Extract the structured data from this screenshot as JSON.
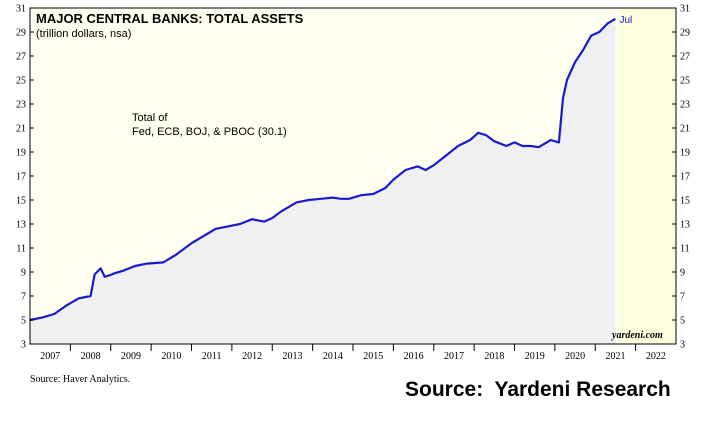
{
  "chart_data": {
    "type": "area",
    "title": "MAJOR CENTRAL BANKS: TOTAL ASSETS",
    "subtitle": "(trillion dollars, nsa)",
    "annotation_lines": [
      "Total of",
      "Fed, ECB, BOJ, & PBOC (30.1)"
    ],
    "end_label": "Jul",
    "watermark": "yardeni.com",
    "ylim": [
      3,
      31
    ],
    "yticks": [
      3,
      5,
      7,
      9,
      11,
      13,
      15,
      17,
      19,
      21,
      23,
      25,
      27,
      29,
      31
    ],
    "xlim": [
      2007,
      2023
    ],
    "xlabels": [
      "2007",
      "2008",
      "2009",
      "2010",
      "2011",
      "2012",
      "2013",
      "2014",
      "2015",
      "2016",
      "2017",
      "2018",
      "2019",
      "2020",
      "2021",
      "2022"
    ],
    "shaded_from": 2021.6,
    "grid": false,
    "colors": {
      "line": "#1a1acc",
      "fill": "#f0f0f2",
      "shade": "#ffffdd"
    },
    "series": [
      {
        "x": [
          2007.0,
          2007.3,
          2007.6,
          2007.9,
          2008.2,
          2008.5,
          2008.6,
          2008.75,
          2008.85,
          2008.95,
          2009.1,
          2009.3,
          2009.6,
          2009.9,
          2010.3,
          2010.6,
          2010.8,
          2011.0,
          2011.3,
          2011.6,
          2011.9,
          2012.2,
          2012.5,
          2012.8,
          2013.0,
          2013.2,
          2013.4,
          2013.6,
          2013.9,
          2014.2,
          2014.5,
          2014.7,
          2014.9,
          2015.2,
          2015.5,
          2015.8,
          2016.0,
          2016.3,
          2016.6,
          2016.8,
          2017.0,
          2017.3,
          2017.6,
          2017.9,
          2018.1,
          2018.3,
          2018.5,
          2018.8,
          2019.0,
          2019.2,
          2019.4,
          2019.6,
          2019.9,
          2020.1,
          2020.2,
          2020.3,
          2020.5,
          2020.7,
          2020.9,
          2021.1,
          2021.3,
          2021.5
        ],
        "values": [
          5.0,
          5.2,
          5.5,
          6.2,
          6.8,
          7.0,
          8.8,
          9.3,
          8.6,
          8.7,
          8.9,
          9.1,
          9.5,
          9.7,
          9.8,
          10.4,
          10.9,
          11.4,
          12.0,
          12.6,
          12.8,
          13.0,
          13.4,
          13.2,
          13.5,
          14.0,
          14.4,
          14.8,
          15.0,
          15.1,
          15.2,
          15.1,
          15.1,
          15.4,
          15.5,
          16.0,
          16.7,
          17.5,
          17.8,
          17.5,
          17.9,
          18.7,
          19.5,
          20.0,
          20.6,
          20.4,
          19.9,
          19.5,
          19.8,
          19.5,
          19.5,
          19.4,
          20.0,
          19.8,
          23.5,
          25.0,
          26.5,
          27.5,
          28.7,
          29.0,
          29.7,
          30.1
        ]
      }
    ]
  },
  "source_small": "Source: Haver Analytics.",
  "source_big": "Source:  Yardeni Research"
}
